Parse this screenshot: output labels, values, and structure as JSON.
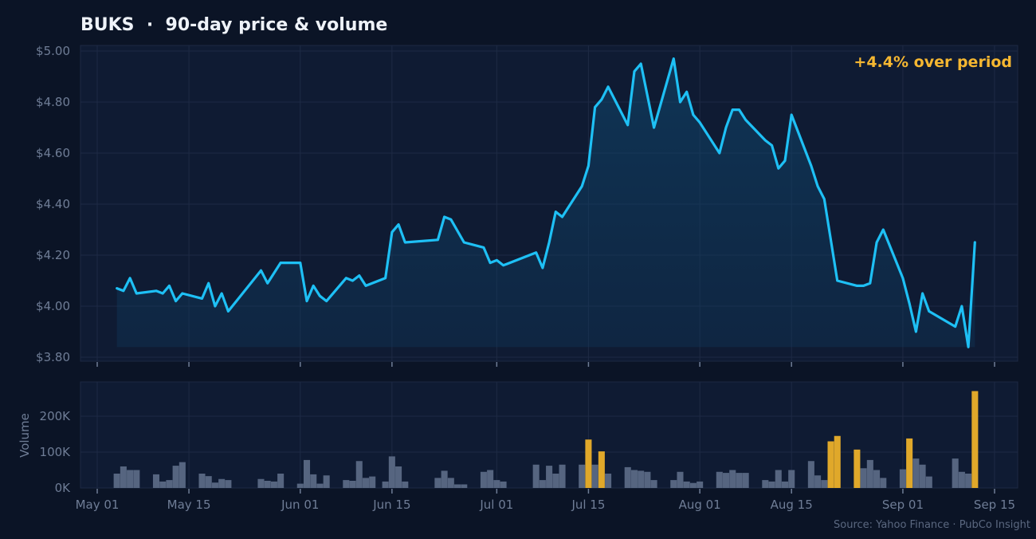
{
  "title": "BUKS  ·  90-day price & volume",
  "annotation": "+4.4% over period",
  "source": "Source: Yahoo Finance · PubCo Insight",
  "colors": {
    "background": "#0b1426",
    "panel": "#0f1b33",
    "price_line": "#1ec0f5",
    "volume_bar": "#566580",
    "volume_spike": "#e0a82a",
    "annotation": "#f5b731",
    "axis_text": "#6f7d96",
    "grid": "#1e2a44"
  },
  "chart_data": [
    {
      "type": "line",
      "name": "price",
      "x_type": "date",
      "ylim": [
        3.8,
        5.0
      ],
      "y_ticks": [
        "$3.80",
        "$4.00",
        "$4.20",
        "$4.40",
        "$4.60",
        "$4.80",
        "$5.00"
      ],
      "y_tick_values": [
        3.8,
        4.0,
        4.2,
        4.4,
        4.6,
        4.8,
        5.0
      ],
      "grid": true,
      "fill_to": 3.84,
      "points": [
        [
          "2025-05-04",
          4.07
        ],
        [
          "2025-05-05",
          4.06
        ],
        [
          "2025-05-06",
          4.11
        ],
        [
          "2025-05-07",
          4.05
        ],
        [
          "2025-05-10",
          4.06
        ],
        [
          "2025-05-11",
          4.05
        ],
        [
          "2025-05-12",
          4.08
        ],
        [
          "2025-05-13",
          4.02
        ],
        [
          "2025-05-14",
          4.05
        ],
        [
          "2025-05-17",
          4.03
        ],
        [
          "2025-05-18",
          4.09
        ],
        [
          "2025-05-19",
          4.0
        ],
        [
          "2025-05-20",
          4.05
        ],
        [
          "2025-05-21",
          3.98
        ],
        [
          "2025-05-26",
          4.14
        ],
        [
          "2025-05-27",
          4.09
        ],
        [
          "2025-05-29",
          4.17
        ],
        [
          "2025-06-01",
          4.17
        ],
        [
          "2025-06-02",
          4.02
        ],
        [
          "2025-06-03",
          4.08
        ],
        [
          "2025-06-04",
          4.04
        ],
        [
          "2025-06-05",
          4.02
        ],
        [
          "2025-06-08",
          4.11
        ],
        [
          "2025-06-09",
          4.1
        ],
        [
          "2025-06-10",
          4.12
        ],
        [
          "2025-06-11",
          4.08
        ],
        [
          "2025-06-14",
          4.11
        ],
        [
          "2025-06-15",
          4.29
        ],
        [
          "2025-06-16",
          4.32
        ],
        [
          "2025-06-17",
          4.25
        ],
        [
          "2025-06-22",
          4.26
        ],
        [
          "2025-06-23",
          4.35
        ],
        [
          "2025-06-24",
          4.34
        ],
        [
          "2025-06-26",
          4.25
        ],
        [
          "2025-06-29",
          4.23
        ],
        [
          "2025-06-30",
          4.17
        ],
        [
          "2025-07-01",
          4.18
        ],
        [
          "2025-07-02",
          4.16
        ],
        [
          "2025-07-07",
          4.21
        ],
        [
          "2025-07-08",
          4.15
        ],
        [
          "2025-07-09",
          4.25
        ],
        [
          "2025-07-10",
          4.37
        ],
        [
          "2025-07-11",
          4.35
        ],
        [
          "2025-07-14",
          4.47
        ],
        [
          "2025-07-15",
          4.55
        ],
        [
          "2025-07-16",
          4.78
        ],
        [
          "2025-07-17",
          4.81
        ],
        [
          "2025-07-18",
          4.86
        ],
        [
          "2025-07-21",
          4.71
        ],
        [
          "2025-07-22",
          4.92
        ],
        [
          "2025-07-23",
          4.95
        ],
        [
          "2025-07-25",
          4.7
        ],
        [
          "2025-07-28",
          4.97
        ],
        [
          "2025-07-29",
          4.8
        ],
        [
          "2025-07-30",
          4.84
        ],
        [
          "2025-07-31",
          4.75
        ],
        [
          "2025-08-01",
          4.72
        ],
        [
          "2025-08-04",
          4.6
        ],
        [
          "2025-08-05",
          4.7
        ],
        [
          "2025-08-06",
          4.77
        ],
        [
          "2025-08-07",
          4.77
        ],
        [
          "2025-08-08",
          4.73
        ],
        [
          "2025-08-11",
          4.65
        ],
        [
          "2025-08-12",
          4.63
        ],
        [
          "2025-08-13",
          4.54
        ],
        [
          "2025-08-14",
          4.57
        ],
        [
          "2025-08-15",
          4.75
        ],
        [
          "2025-08-18",
          4.55
        ],
        [
          "2025-08-19",
          4.47
        ],
        [
          "2025-08-20",
          4.42
        ],
        [
          "2025-08-22",
          4.1
        ],
        [
          "2025-08-25",
          4.08
        ],
        [
          "2025-08-26",
          4.08
        ],
        [
          "2025-08-27",
          4.09
        ],
        [
          "2025-08-28",
          4.25
        ],
        [
          "2025-08-29",
          4.3
        ],
        [
          "2025-09-01",
          4.11
        ],
        [
          "2025-09-02",
          4.01
        ],
        [
          "2025-09-03",
          3.9
        ],
        [
          "2025-09-04",
          4.05
        ],
        [
          "2025-09-05",
          3.98
        ],
        [
          "2025-09-09",
          3.92
        ],
        [
          "2025-09-10",
          4.0
        ],
        [
          "2025-09-11",
          3.84
        ],
        [
          "2025-09-12",
          4.25
        ]
      ]
    },
    {
      "type": "bar",
      "name": "volume",
      "ylabel": "Volume",
      "x_type": "date",
      "ylim": [
        0,
        280000
      ],
      "y_ticks": [
        "0K",
        "100K",
        "200K"
      ],
      "y_tick_values": [
        0,
        100000,
        200000
      ],
      "grid": true,
      "x_ticks": [
        "May 01",
        "May 15",
        "Jun 01",
        "Jun 15",
        "Jul 01",
        "Jul 15",
        "Aug 01",
        "Aug 15",
        "Sep 01",
        "Sep 15"
      ],
      "x_tick_dates": [
        "2025-05-01",
        "2025-05-15",
        "2025-06-01",
        "2025-06-15",
        "2025-07-01",
        "2025-07-15",
        "2025-08-01",
        "2025-08-15",
        "2025-09-01",
        "2025-09-15"
      ],
      "bars": [
        [
          "2025-05-04",
          40000,
          false
        ],
        [
          "2025-05-05",
          60000,
          false
        ],
        [
          "2025-05-06",
          50000,
          false
        ],
        [
          "2025-05-07",
          50000,
          false
        ],
        [
          "2025-05-10",
          38000,
          false
        ],
        [
          "2025-05-11",
          18000,
          false
        ],
        [
          "2025-05-12",
          22000,
          false
        ],
        [
          "2025-05-13",
          62000,
          false
        ],
        [
          "2025-05-14",
          72000,
          false
        ],
        [
          "2025-05-17",
          40000,
          false
        ],
        [
          "2025-05-18",
          33000,
          false
        ],
        [
          "2025-05-19",
          15000,
          false
        ],
        [
          "2025-05-20",
          25000,
          false
        ],
        [
          "2025-05-21",
          22000,
          false
        ],
        [
          "2025-05-26",
          25000,
          false
        ],
        [
          "2025-05-27",
          20000,
          false
        ],
        [
          "2025-05-28",
          18000,
          false
        ],
        [
          "2025-05-29",
          40000,
          false
        ],
        [
          "2025-06-01",
          12000,
          false
        ],
        [
          "2025-06-02",
          78000,
          false
        ],
        [
          "2025-06-03",
          38000,
          false
        ],
        [
          "2025-06-04",
          12000,
          false
        ],
        [
          "2025-06-05",
          35000,
          false
        ],
        [
          "2025-06-08",
          22000,
          false
        ],
        [
          "2025-06-09",
          20000,
          false
        ],
        [
          "2025-06-10",
          75000,
          false
        ],
        [
          "2025-06-11",
          28000,
          false
        ],
        [
          "2025-06-12",
          32000,
          false
        ],
        [
          "2025-06-14",
          18000,
          false
        ],
        [
          "2025-06-15",
          88000,
          false
        ],
        [
          "2025-06-16",
          60000,
          false
        ],
        [
          "2025-06-17",
          18000,
          false
        ],
        [
          "2025-06-22",
          28000,
          false
        ],
        [
          "2025-06-23",
          48000,
          false
        ],
        [
          "2025-06-24",
          28000,
          false
        ],
        [
          "2025-06-25",
          10000,
          false
        ],
        [
          "2025-06-26",
          10000,
          false
        ],
        [
          "2025-06-29",
          45000,
          false
        ],
        [
          "2025-06-30",
          50000,
          false
        ],
        [
          "2025-07-01",
          22000,
          false
        ],
        [
          "2025-07-02",
          18000,
          false
        ],
        [
          "2025-07-07",
          65000,
          false
        ],
        [
          "2025-07-08",
          22000,
          false
        ],
        [
          "2025-07-09",
          62000,
          false
        ],
        [
          "2025-07-10",
          40000,
          false
        ],
        [
          "2025-07-11",
          65000,
          false
        ],
        [
          "2025-07-14",
          65000,
          false
        ],
        [
          "2025-07-15",
          135000,
          true
        ],
        [
          "2025-07-16",
          65000,
          false
        ],
        [
          "2025-07-17",
          102000,
          true
        ],
        [
          "2025-07-18",
          40000,
          false
        ],
        [
          "2025-07-21",
          58000,
          false
        ],
        [
          "2025-07-22",
          50000,
          false
        ],
        [
          "2025-07-23",
          48000,
          false
        ],
        [
          "2025-07-24",
          45000,
          false
        ],
        [
          "2025-07-25",
          22000,
          false
        ],
        [
          "2025-07-28",
          22000,
          false
        ],
        [
          "2025-07-29",
          45000,
          false
        ],
        [
          "2025-07-30",
          18000,
          false
        ],
        [
          "2025-07-31",
          14000,
          false
        ],
        [
          "2025-08-01",
          18000,
          false
        ],
        [
          "2025-08-04",
          45000,
          false
        ],
        [
          "2025-08-05",
          42000,
          false
        ],
        [
          "2025-08-06",
          50000,
          false
        ],
        [
          "2025-08-07",
          42000,
          false
        ],
        [
          "2025-08-08",
          42000,
          false
        ],
        [
          "2025-08-11",
          22000,
          false
        ],
        [
          "2025-08-12",
          18000,
          false
        ],
        [
          "2025-08-13",
          50000,
          false
        ],
        [
          "2025-08-14",
          18000,
          false
        ],
        [
          "2025-08-15",
          50000,
          false
        ],
        [
          "2025-08-18",
          75000,
          false
        ],
        [
          "2025-08-19",
          35000,
          false
        ],
        [
          "2025-08-20",
          22000,
          false
        ],
        [
          "2025-08-21",
          130000,
          true
        ],
        [
          "2025-08-22",
          145000,
          true
        ],
        [
          "2025-08-25",
          107000,
          true
        ],
        [
          "2025-08-26",
          55000,
          false
        ],
        [
          "2025-08-27",
          78000,
          false
        ],
        [
          "2025-08-28",
          50000,
          false
        ],
        [
          "2025-08-29",
          28000,
          false
        ],
        [
          "2025-09-01",
          52000,
          false
        ],
        [
          "2025-09-02",
          138000,
          true
        ],
        [
          "2025-09-03",
          82000,
          false
        ],
        [
          "2025-09-04",
          65000,
          false
        ],
        [
          "2025-09-05",
          32000,
          false
        ],
        [
          "2025-09-09",
          82000,
          false
        ],
        [
          "2025-09-10",
          45000,
          false
        ],
        [
          "2025-09-11",
          40000,
          false
        ],
        [
          "2025-09-12",
          270000,
          true
        ]
      ]
    }
  ]
}
